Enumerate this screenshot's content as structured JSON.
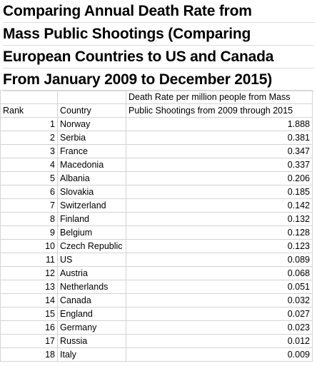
{
  "title_lines": [
    "Comparing Annual Death Rate from",
    "Mass Public Shootings (Comparing",
    "European Countries to US and Canada",
    "From January 2009 to December 2015)"
  ],
  "headers": {
    "rank": "Rank",
    "country": "Country",
    "rate_line1": "Death Rate per million people from Mass",
    "rate_line2": "Public Shootings from 2009 through 2015"
  },
  "rows": [
    {
      "rank": "1",
      "country": "Norway",
      "rate": "1.888"
    },
    {
      "rank": "2",
      "country": "Serbia",
      "rate": "0.381"
    },
    {
      "rank": "3",
      "country": "France",
      "rate": "0.347"
    },
    {
      "rank": "4",
      "country": "Macedonia",
      "rate": "0.337"
    },
    {
      "rank": "5",
      "country": "Albania",
      "rate": "0.206"
    },
    {
      "rank": "6",
      "country": "Slovakia",
      "rate": "0.185"
    },
    {
      "rank": "7",
      "country": "Switzerland",
      "rate": "0.142"
    },
    {
      "rank": "8",
      "country": "Finland",
      "rate": "0.132"
    },
    {
      "rank": "9",
      "country": "Belgium",
      "rate": "0.128"
    },
    {
      "rank": "10",
      "country": "Czech Republic",
      "rate": "0.123"
    },
    {
      "rank": "11",
      "country": "US",
      "rate": "0.089"
    },
    {
      "rank": "12",
      "country": "Austria",
      "rate": "0.068"
    },
    {
      "rank": "13",
      "country": "Netherlands",
      "rate": "0.051"
    },
    {
      "rank": "14",
      "country": "Canada",
      "rate": "0.032"
    },
    {
      "rank": "15",
      "country": "England",
      "rate": "0.027"
    },
    {
      "rank": "16",
      "country": "Germany",
      "rate": "0.023"
    },
    {
      "rank": "17",
      "country": "Russia",
      "rate": "0.012"
    },
    {
      "rank": "18",
      "country": "Italy",
      "rate": "0.009"
    }
  ]
}
